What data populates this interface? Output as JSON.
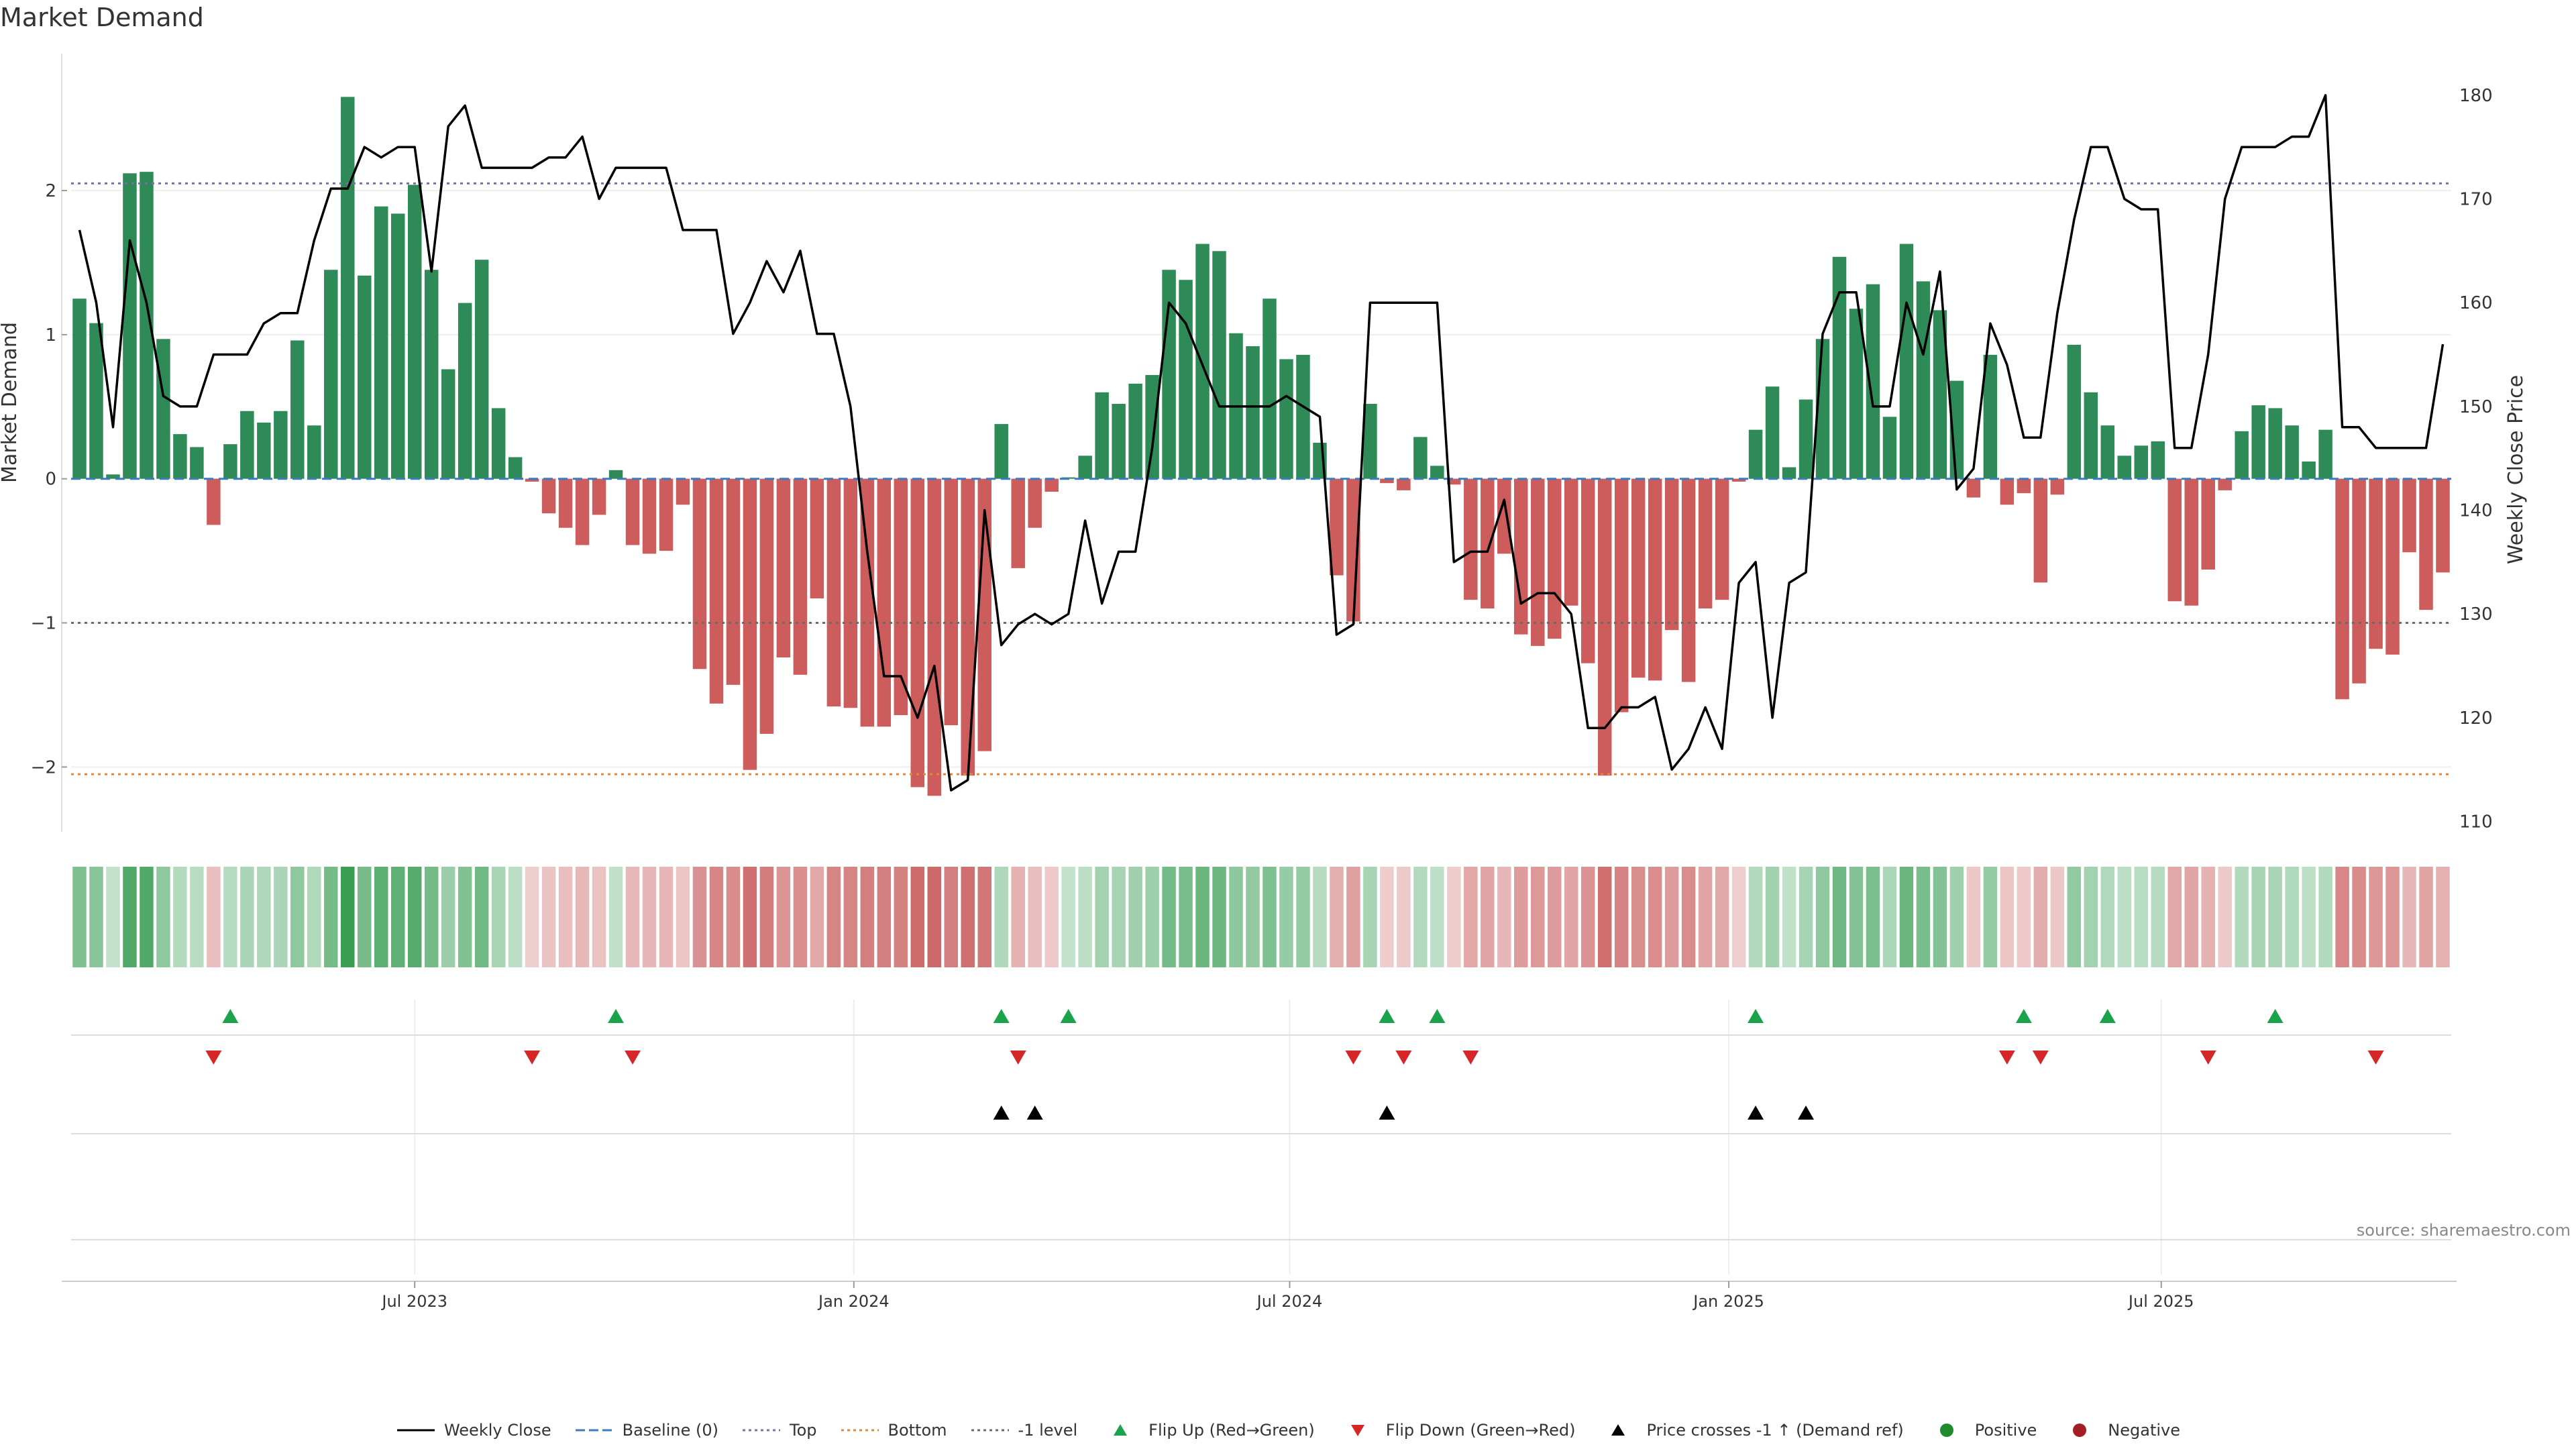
{
  "title": "Market Demand",
  "source": "source: sharemaestro.com",
  "colors": {
    "positive": "#2e8b57",
    "negative": "#cd5c5c",
    "line": "#000000",
    "top": "#7b6fa8",
    "bottom": "#e0883a",
    "minus1": "#6b6b6b",
    "baseline": "#3b7bbf",
    "flip_up": "#1aa34a",
    "flip_down": "#d62728",
    "cross": "#000000"
  },
  "legend": [
    {
      "key": "line",
      "label": "Weekly Close"
    },
    {
      "key": "baseline",
      "label": "Baseline (0)"
    },
    {
      "key": "top",
      "label": "Top"
    },
    {
      "key": "bottom",
      "label": "Bottom"
    },
    {
      "key": "minus1",
      "label": "-1 level"
    },
    {
      "key": "flip_up",
      "label": "Flip Up (Red→Green)"
    },
    {
      "key": "flip_down",
      "label": "Flip Down (Green→Red)"
    },
    {
      "key": "cross",
      "label": "Price crosses -1 ↑ (Demand ref)"
    },
    {
      "key": "positive_dot",
      "label": "Positive"
    },
    {
      "key": "negative_dot",
      "label": "Negative"
    }
  ],
  "chart_data": {
    "type": "bar",
    "title": "Market Demand",
    "ylabel": "Market Demand",
    "y2label": "Weekly Close Price",
    "ylim": [
      -2.45,
      2.95
    ],
    "y2lim": [
      109,
      184
    ],
    "yticks": [
      2,
      1,
      0,
      -1,
      -2
    ],
    "ytick_labels": [
      "2",
      "1",
      "0",
      "−1",
      "−2"
    ],
    "y2ticks": [
      180,
      170,
      160,
      150,
      140,
      130,
      120,
      110
    ],
    "levels": {
      "top": 2.05,
      "bottom": -2.05,
      "minus1": -1.0,
      "baseline": 0
    },
    "x_ticks": [
      {
        "label": "Jul 2023",
        "index": 20
      },
      {
        "label": "Jan 2024",
        "index": 46.2
      },
      {
        "label": "Jul 2024",
        "index": 72.2
      },
      {
        "label": "Jan 2025",
        "index": 98.4
      },
      {
        "label": "Jul 2025",
        "index": 124.2
      }
    ],
    "series": [
      {
        "name": "Market Demand",
        "values": [
          1.25,
          1.08,
          0.03,
          2.12,
          2.13,
          0.97,
          0.31,
          0.22,
          -0.32,
          0.24,
          0.47,
          0.39,
          0.47,
          0.96,
          0.37,
          1.45,
          2.65,
          1.41,
          1.89,
          1.84,
          2.04,
          1.45,
          0.76,
          1.22,
          1.52,
          0.49,
          0.15,
          -0.02,
          -0.24,
          -0.34,
          -0.46,
          -0.25,
          0.06,
          -0.46,
          -0.52,
          -0.5,
          -0.18,
          -1.32,
          -1.56,
          -1.43,
          -2.02,
          -1.77,
          -1.24,
          -1.36,
          -0.83,
          -1.58,
          -1.59,
          -1.72,
          -1.72,
          -1.64,
          -2.14,
          -2.2,
          -1.71,
          -2.06,
          -1.89,
          0.38,
          -0.62,
          -0.34,
          -0.09,
          0.01,
          0.16,
          0.6,
          0.52,
          0.66,
          0.72,
          1.45,
          1.38,
          1.63,
          1.58,
          1.01,
          0.92,
          1.25,
          0.83,
          0.86,
          0.25,
          -0.67,
          -0.99,
          0.52,
          -0.03,
          -0.08,
          0.29,
          0.09,
          -0.04,
          -0.84,
          -0.9,
          -0.52,
          -1.08,
          -1.16,
          -1.11,
          -0.88,
          -1.28,
          -2.06,
          -1.62,
          -1.38,
          -1.4,
          -1.05,
          -1.41,
          -0.9,
          -0.84,
          -0.02,
          0.34,
          0.64,
          0.08,
          0.55,
          0.97,
          1.54,
          1.18,
          1.35,
          0.43,
          1.63,
          1.37,
          1.17,
          0.68,
          -0.13,
          0.86,
          -0.18,
          -0.1,
          -0.72,
          -0.11,
          0.93,
          0.6,
          0.37,
          0.16,
          0.23,
          0.26,
          -0.85,
          -0.88,
          -0.63,
          -0.08,
          0.33,
          0.51,
          0.49,
          0.37,
          0.12,
          0.34,
          -1.53,
          -1.42,
          -1.18,
          -1.22,
          -0.51,
          -0.91,
          -0.65
        ]
      },
      {
        "name": "Weekly Close",
        "axis": "right",
        "values": [
          167,
          160,
          148,
          166,
          160,
          151,
          150,
          150,
          155,
          155,
          155,
          158,
          159,
          159,
          166,
          171,
          171,
          175,
          174,
          175,
          175,
          163,
          177,
          179,
          173,
          173,
          173,
          173,
          174,
          174,
          176,
          170,
          173,
          173,
          173,
          173,
          167,
          167,
          167,
          157,
          160,
          164,
          161,
          165,
          157,
          157,
          150,
          136,
          124,
          124,
          120,
          125,
          113,
          114,
          140,
          127,
          129,
          130,
          129,
          130,
          139,
          131,
          136,
          136,
          146,
          160,
          158,
          154,
          150,
          150,
          150,
          150,
          151,
          150,
          149,
          128,
          129,
          160,
          160,
          160,
          160,
          160,
          135,
          136,
          136,
          141,
          131,
          132,
          132,
          130,
          119,
          119,
          121,
          121,
          122,
          115,
          117,
          121,
          117,
          133,
          135,
          120,
          133,
          134,
          157,
          161,
          161,
          150,
          150,
          160,
          155,
          163,
          142,
          144,
          158,
          154,
          147,
          147,
          159,
          168,
          175,
          175,
          170,
          169,
          169,
          146,
          146,
          155,
          170,
          175,
          175,
          175,
          176,
          176,
          180,
          148,
          148,
          146,
          146,
          146,
          146,
          156
        ]
      }
    ],
    "flip_up_indices": [
      9,
      32,
      55,
      59,
      78,
      81,
      100,
      116,
      121,
      131
    ],
    "flip_down_indices": [
      8,
      27,
      33,
      56,
      76,
      79,
      83,
      115,
      117,
      127,
      137
    ],
    "cross_indices": [
      55,
      57,
      78,
      100,
      103
    ]
  }
}
